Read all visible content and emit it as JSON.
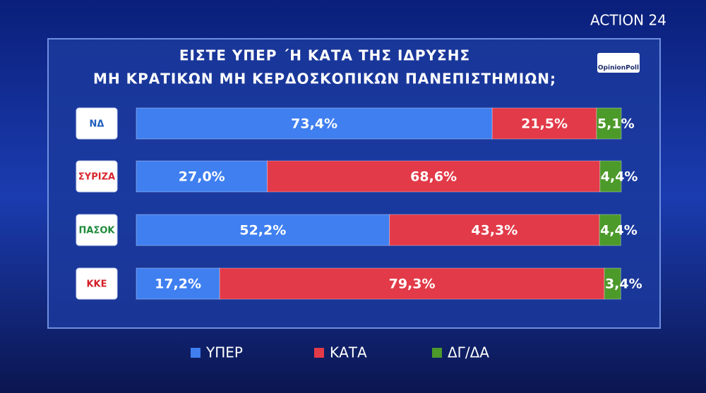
{
  "chart_data": {
    "type": "stacked-bar",
    "brand": "ACTION 24",
    "source": "OpinionPoll",
    "title": "ΕΙΣΤΕ ΥΠΕΡ ΄Η ΚΑΤΑ ΤΗΣ ΙΔΡΥΣΗΣ",
    "subtitle": "ΜΗ ΚΡΑΤΙΚΩΝ ΜΗ ΚΕΡΔΟΣΚΟΠΙΚΩΝ ΠΑΝΕΠΙΣΤΗΜΙΩΝ;",
    "categories": [
      "ΝΔ",
      "ΣΥΡΙΖΑ",
      "ΠΑΣΟΚ",
      "ΚΚΕ"
    ],
    "category_colors": [
      "#1f5fbf",
      "#d8262f",
      "#1e8a3a",
      "#d51f26"
    ],
    "series": [
      {
        "name": "ΥΠΕΡ",
        "color": "#3f7ff0",
        "values": [
          73.4,
          27.0,
          52.2,
          17.2
        ],
        "value_labels": [
          "73,4%",
          "27,0%",
          "52,2%",
          "17,2%"
        ]
      },
      {
        "name": "ΚΑΤΑ",
        "color": "#e23a48",
        "values": [
          21.5,
          68.6,
          43.3,
          79.3
        ],
        "value_labels": [
          "21,5%",
          "68,6%",
          "43,3%",
          "79,3%"
        ]
      },
      {
        "name": "ΔΓ/ΔΑ",
        "color": "#4c9a2a",
        "values": [
          5.1,
          4.4,
          4.4,
          3.4
        ],
        "value_labels": [
          "5,1%",
          "4,4%",
          "4,4%",
          "3,4%"
        ]
      }
    ],
    "legend": "bottom"
  }
}
